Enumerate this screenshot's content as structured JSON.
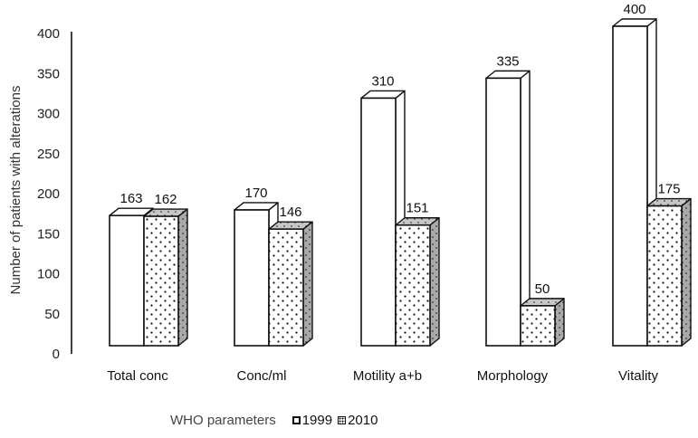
{
  "chart_data": {
    "type": "bar",
    "style": "3d-clustered-column",
    "categories": [
      "Total conc",
      "Conc/ml",
      "Motility a+b",
      "Morphology",
      "Vitality"
    ],
    "series": [
      {
        "name": "1999",
        "values": [
          163,
          170,
          310,
          335,
          400
        ],
        "pattern": "open-white"
      },
      {
        "name": "2010",
        "values": [
          162,
          146,
          151,
          50,
          175
        ],
        "pattern": "dotted"
      }
    ],
    "data_labels": [
      [
        "163",
        "170",
        "310",
        "335",
        "400"
      ],
      [
        "162",
        "146",
        "151",
        "50",
        "175"
      ]
    ],
    "title": "",
    "xlabel": "WHO parameters",
    "ylabel": "Number of patients with alterations",
    "ylim": [
      0,
      400
    ],
    "yticks": [
      0,
      50,
      100,
      150,
      200,
      250,
      300,
      350,
      400
    ],
    "grid": false,
    "legend": {
      "position": "bottom",
      "entries": [
        "1999",
        "2010"
      ]
    },
    "colors": {
      "edge": "#111111",
      "front": "#ffffff",
      "side_2010": "#a9a9a9",
      "top_2010": "#c6c6c6",
      "dots": "#111111"
    }
  }
}
